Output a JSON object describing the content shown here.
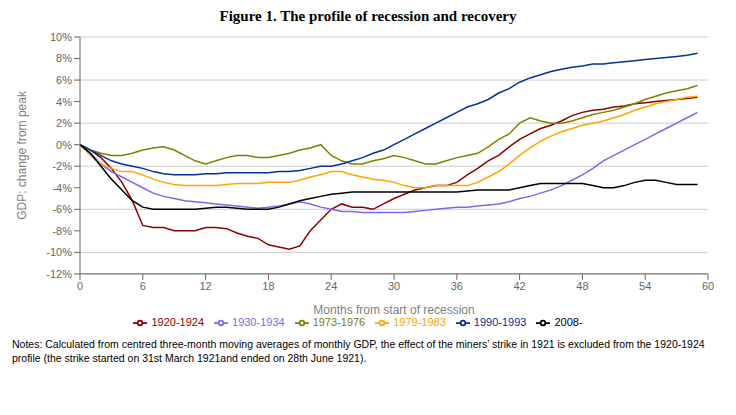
{
  "chart_data": {
    "type": "line",
    "title": "Figure 1. The profile of recession and recovery",
    "xlabel": "Months from start of recession",
    "ylabel": "GDP: change from peak",
    "x": [
      0,
      1,
      2,
      3,
      4,
      5,
      6,
      7,
      8,
      9,
      10,
      11,
      12,
      13,
      14,
      15,
      16,
      17,
      18,
      19,
      20,
      21,
      22,
      23,
      24,
      25,
      26,
      27,
      28,
      29,
      30,
      31,
      32,
      33,
      34,
      35,
      36,
      37,
      38,
      39,
      40,
      41,
      42,
      43,
      44,
      45,
      46,
      47,
      48,
      49,
      50,
      51,
      52,
      53,
      54,
      55,
      56,
      57,
      58,
      59
    ],
    "series": [
      {
        "name": "1920-1924",
        "color": "#8B0000",
        "values": [
          0,
          -0.005,
          -0.012,
          -0.022,
          -0.035,
          -0.052,
          -0.075,
          -0.077,
          -0.077,
          -0.08,
          -0.08,
          -0.08,
          -0.077,
          -0.077,
          -0.078,
          -0.082,
          -0.085,
          -0.087,
          -0.093,
          -0.095,
          -0.097,
          -0.094,
          -0.08,
          -0.07,
          -0.06,
          -0.055,
          -0.058,
          -0.058,
          -0.06,
          -0.055,
          -0.05,
          -0.046,
          -0.042,
          -0.04,
          -0.038,
          -0.038,
          -0.035,
          -0.028,
          -0.022,
          -0.015,
          -0.01,
          -0.002,
          0.005,
          0.01,
          0.015,
          0.018,
          0.022,
          0.027,
          0.03,
          0.032,
          0.033,
          0.035,
          0.036,
          0.038,
          0.039,
          0.04,
          0.041,
          0.042,
          0.043,
          0.044
        ]
      },
      {
        "name": "1930-1934",
        "color": "#7B68EE",
        "values": [
          0,
          -0.008,
          -0.018,
          -0.025,
          -0.03,
          -0.035,
          -0.04,
          -0.045,
          -0.048,
          -0.05,
          -0.052,
          -0.053,
          -0.054,
          -0.055,
          -0.056,
          -0.057,
          -0.058,
          -0.059,
          -0.058,
          -0.057,
          -0.055,
          -0.053,
          -0.055,
          -0.058,
          -0.06,
          -0.062,
          -0.062,
          -0.063,
          -0.063,
          -0.063,
          -0.063,
          -0.063,
          -0.062,
          -0.061,
          -0.06,
          -0.059,
          -0.058,
          -0.058,
          -0.057,
          -0.056,
          -0.055,
          -0.053,
          -0.05,
          -0.048,
          -0.045,
          -0.042,
          -0.038,
          -0.033,
          -0.028,
          -0.022,
          -0.015,
          -0.01,
          -0.005,
          0.0,
          0.005,
          0.01,
          0.015,
          0.02,
          0.025,
          0.03
        ]
      },
      {
        "name": "1973-1976",
        "color": "#808000",
        "values": [
          0,
          -0.005,
          -0.008,
          -0.01,
          -0.01,
          -0.008,
          -0.005,
          -0.003,
          -0.002,
          -0.005,
          -0.01,
          -0.015,
          -0.018,
          -0.015,
          -0.012,
          -0.01,
          -0.01,
          -0.012,
          -0.012,
          -0.01,
          -0.008,
          -0.005,
          -0.003,
          0.0,
          -0.01,
          -0.015,
          -0.018,
          -0.018,
          -0.015,
          -0.013,
          -0.01,
          -0.012,
          -0.015,
          -0.018,
          -0.018,
          -0.015,
          -0.012,
          -0.01,
          -0.008,
          -0.002,
          0.005,
          0.01,
          0.02,
          0.025,
          0.022,
          0.02,
          0.02,
          0.022,
          0.025,
          0.028,
          0.03,
          0.032,
          0.035,
          0.038,
          0.042,
          0.045,
          0.048,
          0.05,
          0.052,
          0.055
        ]
      },
      {
        "name": "1979-1983",
        "color": "#FFA500",
        "values": [
          0,
          -0.01,
          -0.018,
          -0.022,
          -0.025,
          -0.025,
          -0.028,
          -0.032,
          -0.035,
          -0.037,
          -0.038,
          -0.038,
          -0.038,
          -0.038,
          -0.037,
          -0.036,
          -0.036,
          -0.036,
          -0.035,
          -0.035,
          -0.035,
          -0.033,
          -0.03,
          -0.028,
          -0.025,
          -0.025,
          -0.028,
          -0.03,
          -0.032,
          -0.033,
          -0.035,
          -0.038,
          -0.04,
          -0.04,
          -0.038,
          -0.038,
          -0.038,
          -0.038,
          -0.035,
          -0.03,
          -0.025,
          -0.018,
          -0.01,
          -0.003,
          0.003,
          0.008,
          0.012,
          0.015,
          0.018,
          0.02,
          0.022,
          0.025,
          0.028,
          0.032,
          0.035,
          0.038,
          0.04,
          0.042,
          0.044,
          0.045
        ]
      },
      {
        "name": "1990-1993",
        "color": "#003399",
        "values": [
          0,
          -0.005,
          -0.01,
          -0.015,
          -0.018,
          -0.02,
          -0.022,
          -0.025,
          -0.027,
          -0.028,
          -0.028,
          -0.028,
          -0.027,
          -0.027,
          -0.026,
          -0.026,
          -0.026,
          -0.026,
          -0.026,
          -0.025,
          -0.025,
          -0.024,
          -0.022,
          -0.02,
          -0.02,
          -0.018,
          -0.015,
          -0.012,
          -0.008,
          -0.005,
          0.0,
          0.005,
          0.01,
          0.015,
          0.02,
          0.025,
          0.03,
          0.035,
          0.038,
          0.042,
          0.048,
          0.052,
          0.058,
          0.062,
          0.065,
          0.068,
          0.07,
          0.072,
          0.073,
          0.075,
          0.075,
          0.076,
          0.077,
          0.078,
          0.079,
          0.08,
          0.081,
          0.082,
          0.083,
          0.085
        ]
      },
      {
        "name": "2008-",
        "color": "#000000",
        "values": [
          0,
          -0.008,
          -0.02,
          -0.032,
          -0.042,
          -0.052,
          -0.058,
          -0.06,
          -0.06,
          -0.06,
          -0.06,
          -0.06,
          -0.059,
          -0.058,
          -0.058,
          -0.059,
          -0.06,
          -0.06,
          -0.06,
          -0.058,
          -0.055,
          -0.052,
          -0.05,
          -0.048,
          -0.046,
          -0.045,
          -0.044,
          -0.044,
          -0.044,
          -0.044,
          -0.044,
          -0.044,
          -0.044,
          -0.044,
          -0.044,
          -0.044,
          -0.044,
          -0.043,
          -0.042,
          -0.042,
          -0.042,
          -0.042,
          -0.04,
          -0.038,
          -0.036,
          -0.036,
          -0.036,
          -0.036,
          -0.036,
          -0.038,
          -0.04,
          -0.04,
          -0.038,
          -0.035,
          -0.033,
          -0.033,
          -0.035,
          -0.037,
          -0.037,
          -0.037
        ]
      }
    ],
    "xlim": [
      0,
      60
    ],
    "xticks": [
      0,
      6,
      12,
      18,
      24,
      30,
      36,
      42,
      48,
      54,
      60
    ],
    "ylim": [
      -0.12,
      0.1
    ],
    "yticks": [
      {
        "value": -0.12,
        "label": "-12%"
      },
      {
        "value": -0.1,
        "label": "-10%"
      },
      {
        "value": -0.08,
        "label": "-8%"
      },
      {
        "value": -0.06,
        "label": "-6%"
      },
      {
        "value": -0.04,
        "label": "-4%"
      },
      {
        "value": -0.02,
        "label": "-2%"
      },
      {
        "value": 0.0,
        "label": "0%"
      },
      {
        "value": 0.02,
        "label": "2%"
      },
      {
        "value": 0.04,
        "label": "4%"
      },
      {
        "value": 0.06,
        "label": "6%"
      },
      {
        "value": 0.08,
        "label": "8%"
      },
      {
        "value": 0.1,
        "label": "10%"
      }
    ],
    "grid": true,
    "legend": "bottom",
    "annotations": [
      "Notes: Calculated from centred three-month moving averages of monthly GDP, the effect of the miners’ strike in 1921 is excluded from the 1920-1924 profile (the strike started on 31st March 1921and ended on 28th June 1921)."
    ]
  }
}
